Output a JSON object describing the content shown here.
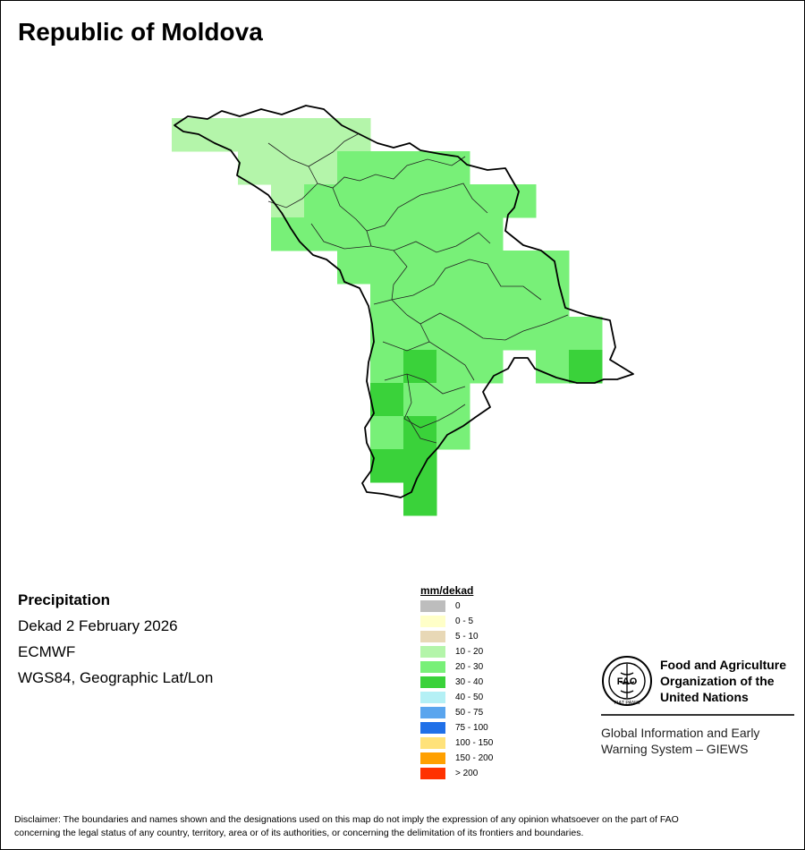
{
  "title": "Republic of Moldova",
  "info": {
    "product": "Precipitation",
    "period": "Dekad 2 February 2026",
    "source": "ECMWF",
    "projection": "WGS84, Geographic Lat/Lon"
  },
  "legend": {
    "unit": "mm/dekad",
    "items": [
      {
        "label": "0",
        "color": "#bdbdbd"
      },
      {
        "label": "0 - 5",
        "color": "#ffffc8"
      },
      {
        "label": "5 - 10",
        "color": "#e8d8b6"
      },
      {
        "label": "10 - 20",
        "color": "#b4f5aa"
      },
      {
        "label": "20 - 30",
        "color": "#78f078"
      },
      {
        "label": "30 - 40",
        "color": "#3ad23a"
      },
      {
        "label": "40 - 50",
        "color": "#b4f0f5"
      },
      {
        "label": "50 - 75",
        "color": "#5aa5ee"
      },
      {
        "label": "75 - 100",
        "color": "#2070e8"
      },
      {
        "label": "100 - 150",
        "color": "#ffe27a"
      },
      {
        "label": "150 - 200",
        "color": "#ffa000"
      },
      {
        "label": "> 200",
        "color": "#ff3200"
      }
    ]
  },
  "map_data": {
    "cells": [
      {
        "col": 0,
        "row": 0,
        "class": "10 - 20"
      },
      {
        "col": 1,
        "row": 0,
        "class": "10 - 20"
      },
      {
        "col": 2,
        "row": 0,
        "class": "10 - 20"
      },
      {
        "col": 3,
        "row": 0,
        "class": "10 - 20"
      },
      {
        "col": 4,
        "row": 0,
        "class": "10 - 20"
      },
      {
        "col": 5,
        "row": 0,
        "class": "10 - 20"
      },
      {
        "col": 2,
        "row": 1,
        "class": "10 - 20"
      },
      {
        "col": 3,
        "row": 1,
        "class": "10 - 20"
      },
      {
        "col": 4,
        "row": 1,
        "class": "10 - 20"
      },
      {
        "col": 5,
        "row": 1,
        "class": "20 - 30"
      },
      {
        "col": 6,
        "row": 1,
        "class": "20 - 30"
      },
      {
        "col": 7,
        "row": 1,
        "class": "20 - 30"
      },
      {
        "col": 8,
        "row": 1,
        "class": "20 - 30"
      },
      {
        "col": 3,
        "row": 2,
        "class": "10 - 20"
      },
      {
        "col": 4,
        "row": 2,
        "class": "20 - 30"
      },
      {
        "col": 5,
        "row": 2,
        "class": "20 - 30"
      },
      {
        "col": 6,
        "row": 2,
        "class": "20 - 30"
      },
      {
        "col": 7,
        "row": 2,
        "class": "20 - 30"
      },
      {
        "col": 8,
        "row": 2,
        "class": "20 - 30"
      },
      {
        "col": 9,
        "row": 2,
        "class": "20 - 30"
      },
      {
        "col": 10,
        "row": 2,
        "class": "20 - 30"
      },
      {
        "col": 3,
        "row": 3,
        "class": "20 - 30"
      },
      {
        "col": 4,
        "row": 3,
        "class": "20 - 30"
      },
      {
        "col": 5,
        "row": 3,
        "class": "20 - 30"
      },
      {
        "col": 6,
        "row": 3,
        "class": "20 - 30"
      },
      {
        "col": 7,
        "row": 3,
        "class": "20 - 30"
      },
      {
        "col": 8,
        "row": 3,
        "class": "20 - 30"
      },
      {
        "col": 9,
        "row": 3,
        "class": "20 - 30"
      },
      {
        "col": 5,
        "row": 4,
        "class": "20 - 30"
      },
      {
        "col": 6,
        "row": 4,
        "class": "20 - 30"
      },
      {
        "col": 7,
        "row": 4,
        "class": "20 - 30"
      },
      {
        "col": 8,
        "row": 4,
        "class": "20 - 30"
      },
      {
        "col": 9,
        "row": 4,
        "class": "20 - 30"
      },
      {
        "col": 10,
        "row": 4,
        "class": "20 - 30"
      },
      {
        "col": 11,
        "row": 4,
        "class": "20 - 30"
      },
      {
        "col": 6,
        "row": 5,
        "class": "20 - 30"
      },
      {
        "col": 7,
        "row": 5,
        "class": "20 - 30"
      },
      {
        "col": 8,
        "row": 5,
        "class": "20 - 30"
      },
      {
        "col": 9,
        "row": 5,
        "class": "20 - 30"
      },
      {
        "col": 10,
        "row": 5,
        "class": "20 - 30"
      },
      {
        "col": 11,
        "row": 5,
        "class": "20 - 30"
      },
      {
        "col": 6,
        "row": 6,
        "class": "20 - 30"
      },
      {
        "col": 7,
        "row": 6,
        "class": "20 - 30"
      },
      {
        "col": 8,
        "row": 6,
        "class": "20 - 30"
      },
      {
        "col": 9,
        "row": 6,
        "class": "20 - 30"
      },
      {
        "col": 10,
        "row": 6,
        "class": "20 - 30"
      },
      {
        "col": 11,
        "row": 6,
        "class": "20 - 30"
      },
      {
        "col": 12,
        "row": 6,
        "class": "20 - 30"
      },
      {
        "col": 6,
        "row": 7,
        "class": "20 - 30"
      },
      {
        "col": 7,
        "row": 7,
        "class": "30 - 40"
      },
      {
        "col": 8,
        "row": 7,
        "class": "20 - 30"
      },
      {
        "col": 9,
        "row": 7,
        "class": "20 - 30"
      },
      {
        "col": 11,
        "row": 7,
        "class": "20 - 30"
      },
      {
        "col": 12,
        "row": 7,
        "class": "30 - 40"
      },
      {
        "col": 6,
        "row": 8,
        "class": "30 - 40"
      },
      {
        "col": 7,
        "row": 8,
        "class": "20 - 30"
      },
      {
        "col": 8,
        "row": 8,
        "class": "20 - 30"
      },
      {
        "col": 6,
        "row": 9,
        "class": "20 - 30"
      },
      {
        "col": 7,
        "row": 9,
        "class": "30 - 40"
      },
      {
        "col": 8,
        "row": 9,
        "class": "20 - 30"
      },
      {
        "col": 6,
        "row": 10,
        "class": "30 - 40"
      },
      {
        "col": 7,
        "row": 10,
        "class": "30 - 40"
      },
      {
        "col": 7,
        "row": 11,
        "class": "30 - 40"
      }
    ]
  },
  "logo": {
    "org_line1": "Food and Agriculture",
    "org_line2": "Organization of the",
    "org_line3": "United Nations",
    "giews_line1": "Global Information and Early",
    "giews_line2": "Warning System – GIEWS",
    "emblem_letters": "FAO",
    "motto": "FIAT PANIS"
  },
  "disclaimer_line1": "Disclaimer: The boundaries and names shown and the designations used on this map do not imply the expression of any opinion whatsoever on the part of FAO",
  "disclaimer_line2": "concerning the legal status of any country, territory, area or of its authorities, or concerning the delimitation of its frontiers and boundaries."
}
